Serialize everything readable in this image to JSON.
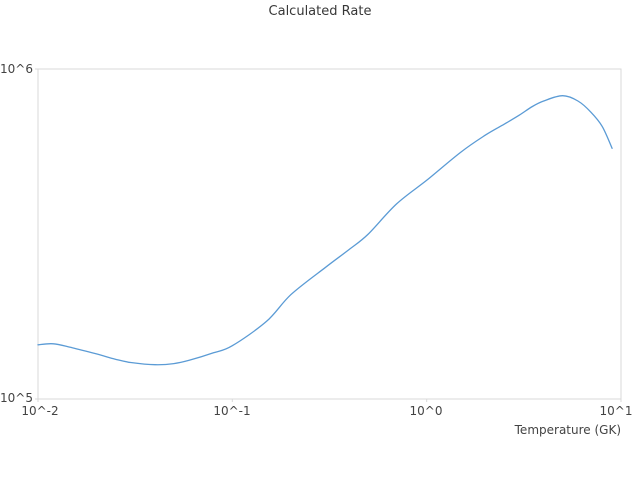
{
  "figure": {
    "title": "Calculated Rate",
    "background_color": "#ffffff",
    "border_color": "#d9d9d9",
    "text_color": "#434343",
    "line_color": "#5b9bd5"
  },
  "axes": {
    "x_label": "Temperature (GK)",
    "x_ticks": [
      "10^-2",
      "10^-1",
      "10^0",
      "10^1"
    ],
    "y_ticks": [
      "10^5",
      "10^6"
    ]
  },
  "chart_data": {
    "type": "line",
    "title": "Calculated Rate",
    "xlabel": "Temperature (GK)",
    "ylabel": "",
    "x_scale": "log",
    "y_scale": "log",
    "xlim": [
      0.01,
      10
    ],
    "ylim": [
      100000,
      1000000
    ],
    "grid": false,
    "legend": false,
    "x_tick_values": [
      0.01,
      0.1,
      1,
      10
    ],
    "y_tick_values": [
      100000,
      1000000
    ],
    "series": [
      {
        "name": "calculated-rate",
        "color": "#5b9bd5",
        "x": [
          0.01,
          0.012,
          0.015,
          0.02,
          0.025,
          0.03,
          0.04,
          0.05,
          0.06,
          0.08,
          0.1,
          0.15,
          0.2,
          0.3,
          0.4,
          0.5,
          0.7,
          1.0,
          1.5,
          2.0,
          2.5,
          3.0,
          3.5,
          4.0,
          5.0,
          6.0,
          7.0,
          8.0,
          9.0
        ],
        "y": [
          146000,
          147000,
          143000,
          137000,
          132000,
          129000,
          127000,
          128000,
          131000,
          138000,
          145000,
          172000,
          207000,
          250000,
          284000,
          316000,
          390000,
          460000,
          560000,
          630000,
          680000,
          725000,
          770000,
          800000,
          830000,
          800000,
          740000,
          670000,
          575000
        ]
      }
    ]
  }
}
